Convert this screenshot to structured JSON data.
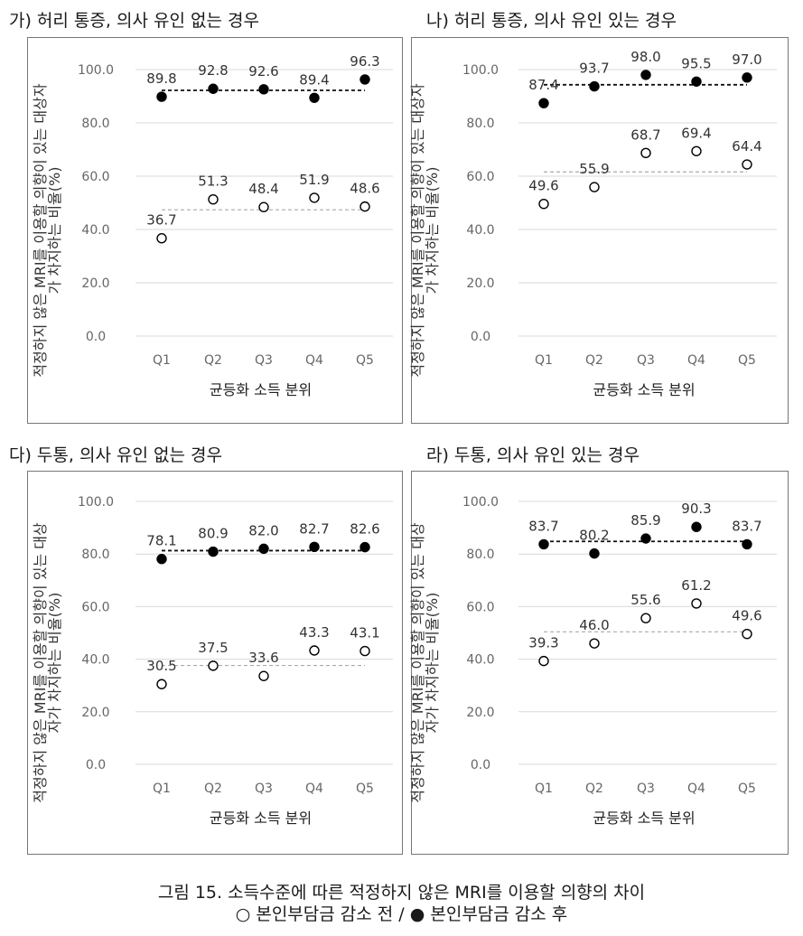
{
  "figure": {
    "caption_line1": "그림 15. 소득수준에 따른 적정하지 않은 MRI를 이용할 의향의 차이",
    "caption_line2": "○ 본인부담금 감소 전 / ● 본인부담금 감소 후"
  },
  "chart_data": [
    {
      "type": "scatter",
      "title": "가) 허리 통증, 의사 유인 없는 경우",
      "xlabel": "균등화 소득 분위",
      "ylabel_line1": "적정하지 않은 MRI를 이용할 의향이 있는 대상자",
      "ylabel_line2": "가 차지하는 비율(%)",
      "categories": [
        "Q1",
        "Q2",
        "Q3",
        "Q4",
        "Q5"
      ],
      "ylim": [
        0,
        100
      ],
      "yticks": [
        "0.0",
        "20.0",
        "40.0",
        "60.0",
        "80.0",
        "100.0"
      ],
      "grid": true,
      "series": [
        {
          "marker": "filled",
          "values": [
            89.8,
            92.8,
            92.6,
            89.4,
            96.3
          ],
          "labels": [
            "89.8",
            "92.8",
            "92.6",
            "89.4",
            "96.3"
          ],
          "mean": 92.2
        },
        {
          "marker": "open",
          "values": [
            36.7,
            51.3,
            48.4,
            51.9,
            48.6
          ],
          "labels": [
            "36.7",
            "51.3",
            "48.4",
            "51.9",
            "48.6"
          ],
          "mean": 47.4
        }
      ]
    },
    {
      "type": "scatter",
      "title": "나) 허리 통증, 의사 유인 있는 경우",
      "xlabel": "균등화 소득 분위",
      "ylabel_line1": "적정하지 않은 MRI를 이용할 의향이 있는 대상자",
      "ylabel_line2": "가 차지하는 비율(%)",
      "categories": [
        "Q1",
        "Q2",
        "Q3",
        "Q4",
        "Q5"
      ],
      "ylim": [
        0,
        100
      ],
      "yticks": [
        "0.0",
        "20.0",
        "40.0",
        "60.0",
        "80.0",
        "100.0"
      ],
      "grid": true,
      "series": [
        {
          "marker": "filled",
          "values": [
            87.4,
            93.7,
            98.0,
            95.5,
            97.0
          ],
          "labels": [
            "87.4",
            "93.7",
            "98.0",
            "95.5",
            "97.0"
          ],
          "mean": 94.3
        },
        {
          "marker": "open",
          "values": [
            49.6,
            55.9,
            68.7,
            69.4,
            64.4
          ],
          "labels": [
            "49.6",
            "55.9",
            "68.7",
            "69.4",
            "64.4"
          ],
          "mean": 61.6
        }
      ]
    },
    {
      "type": "scatter",
      "title": "다) 두통, 의사 유인 없는 경우",
      "xlabel": "균등화 소득 분위",
      "ylabel_line1": "적정하지 않은 MRI를 이용할 의향이 있는 대상",
      "ylabel_line2": "자가 차지하는 비율(%)",
      "categories": [
        "Q1",
        "Q2",
        "Q3",
        "Q4",
        "Q5"
      ],
      "ylim": [
        0,
        100
      ],
      "yticks": [
        "0.0",
        "20.0",
        "40.0",
        "60.0",
        "80.0",
        "100.0"
      ],
      "grid": true,
      "series": [
        {
          "marker": "filled",
          "values": [
            78.1,
            80.9,
            82.0,
            82.7,
            82.6
          ],
          "labels": [
            "78.1",
            "80.9",
            "82.0",
            "82.7",
            "82.6"
          ],
          "mean": 81.3
        },
        {
          "marker": "open",
          "values": [
            30.5,
            37.5,
            33.6,
            43.3,
            43.1
          ],
          "labels": [
            "30.5",
            "37.5",
            "33.6",
            "43.3",
            "43.1"
          ],
          "mean": 37.6
        }
      ]
    },
    {
      "type": "scatter",
      "title": "라) 두통, 의사 유인 있는 경우",
      "xlabel": "균등화 소득 분위",
      "ylabel_line1": "적정하지 않은 MRI를 이용할 의향이 있는 대상",
      "ylabel_line2": "자가 차지하는 비율(%)",
      "categories": [
        "Q1",
        "Q2",
        "Q3",
        "Q4",
        "Q5"
      ],
      "ylim": [
        0,
        100
      ],
      "yticks": [
        "0.0",
        "20.0",
        "40.0",
        "60.0",
        "80.0",
        "100.0"
      ],
      "grid": true,
      "series": [
        {
          "marker": "filled",
          "values": [
            83.7,
            80.2,
            85.9,
            90.3,
            83.7
          ],
          "labels": [
            "83.7",
            "80.2",
            "85.9",
            "90.3",
            "83.7"
          ],
          "mean": 84.8
        },
        {
          "marker": "open",
          "values": [
            39.3,
            46.0,
            55.6,
            61.2,
            49.6
          ],
          "labels": [
            "39.3",
            "46.0",
            "55.6",
            "61.2",
            "49.6"
          ],
          "mean": 50.4
        }
      ]
    }
  ]
}
